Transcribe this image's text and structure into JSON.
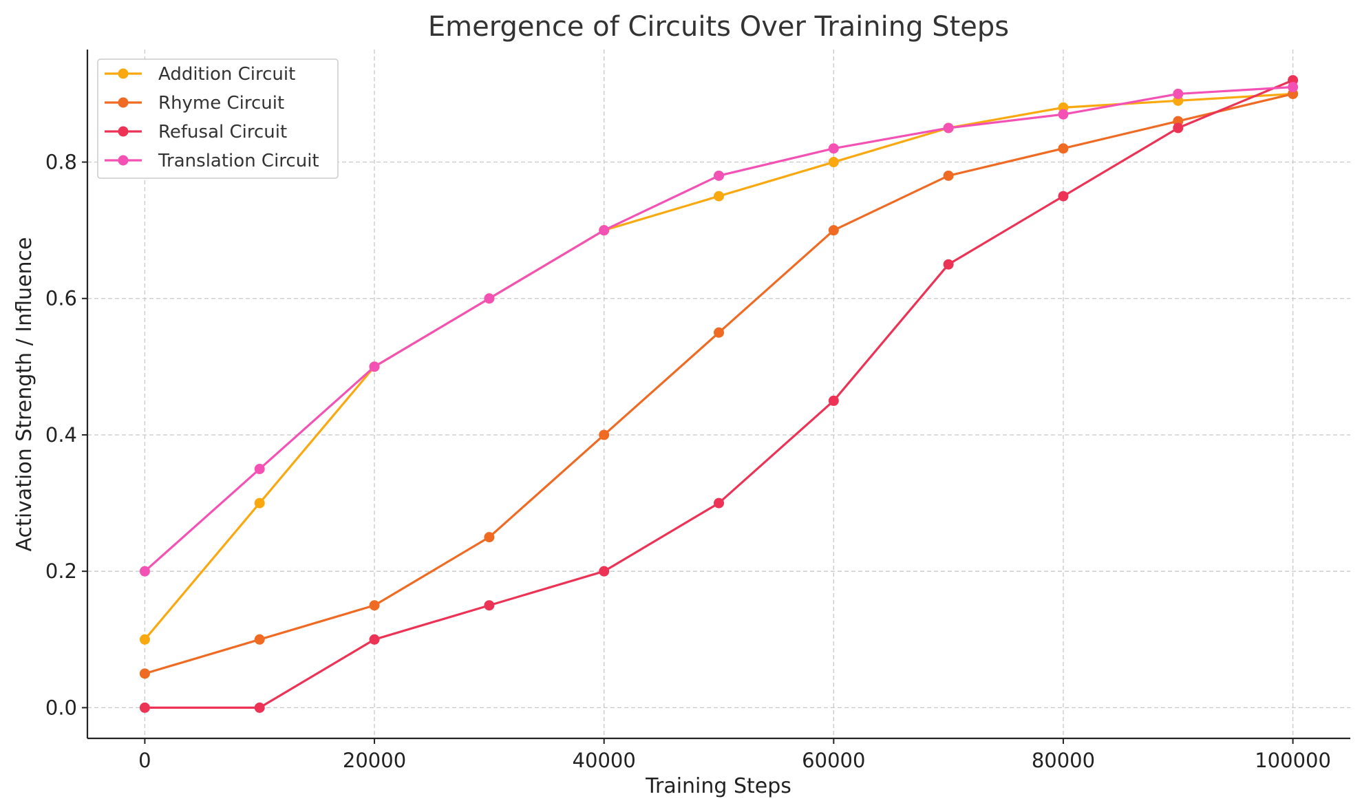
{
  "chart_data": {
    "type": "line",
    "title": "Emergence of Circuits Over Training Steps",
    "xlabel": "Training Steps",
    "ylabel": "Activation Strength / Influence",
    "x": [
      0,
      10000,
      20000,
      30000,
      40000,
      50000,
      60000,
      70000,
      80000,
      90000,
      100000
    ],
    "xlim": [
      -5000,
      105000
    ],
    "ylim": [
      -0.045,
      0.965
    ],
    "xticks": [
      0,
      20000,
      40000,
      60000,
      80000,
      100000
    ],
    "xtick_labels": [
      "0",
      "20000",
      "40000",
      "60000",
      "80000",
      "100000"
    ],
    "yticks": [
      0.0,
      0.2,
      0.4,
      0.6,
      0.8
    ],
    "ytick_labels": [
      "0.0",
      "0.2",
      "0.4",
      "0.6",
      "0.8"
    ],
    "grid": true,
    "legend_position": "top-left",
    "series": [
      {
        "name": "Addition Circuit",
        "color": "#f9a90f",
        "values": [
          0.1,
          0.3,
          0.5,
          0.6,
          0.7,
          0.75,
          0.8,
          0.85,
          0.88,
          0.89,
          0.9
        ]
      },
      {
        "name": "Rhyme Circuit",
        "color": "#ef6a22",
        "values": [
          0.05,
          0.1,
          0.15,
          0.25,
          0.4,
          0.55,
          0.7,
          0.78,
          0.82,
          0.86,
          0.9
        ]
      },
      {
        "name": "Refusal Circuit",
        "color": "#ec3356",
        "values": [
          0.0,
          0.0,
          0.1,
          0.15,
          0.2,
          0.3,
          0.45,
          0.65,
          0.75,
          0.85,
          0.92
        ]
      },
      {
        "name": "Translation Circuit",
        "color": "#f451b4",
        "values": [
          0.2,
          0.35,
          0.5,
          0.6,
          0.7,
          0.78,
          0.82,
          0.85,
          0.87,
          0.9,
          0.91
        ]
      }
    ]
  }
}
